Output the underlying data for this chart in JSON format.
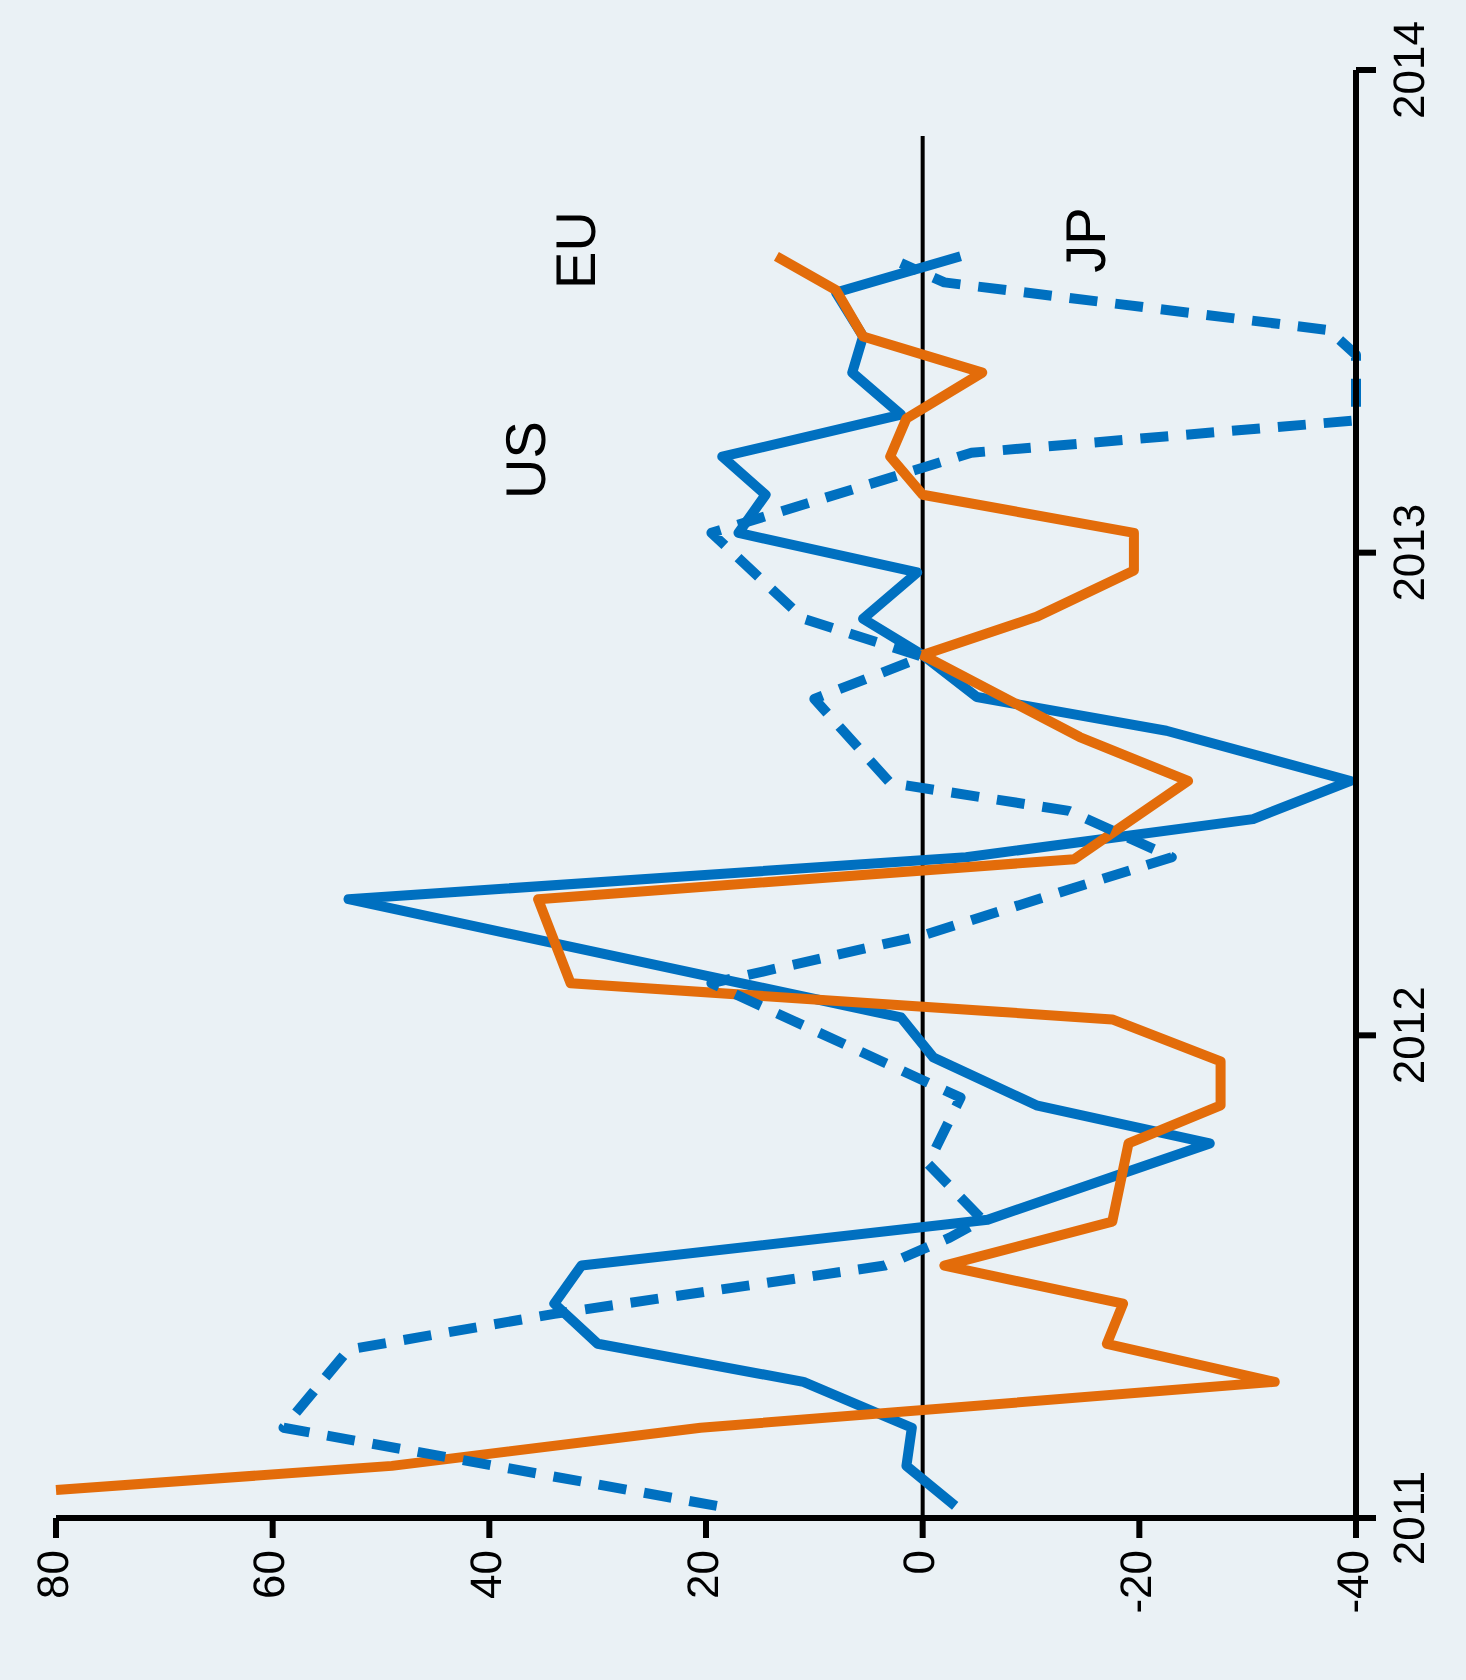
{
  "chart_data": {
    "type": "line",
    "xlim": [
      80,
      -40
    ],
    "xticks": [
      80,
      60,
      40,
      20,
      0,
      -20,
      -40
    ],
    "ylim": [
      2011,
      2014
    ],
    "yticks": [
      2011,
      2012,
      2013,
      2014
    ],
    "grid": false,
    "ref_lines": [
      {
        "axis": "x",
        "value": 0,
        "color": "#000000"
      }
    ],
    "annotations": [
      "US",
      "EU",
      "JP"
    ],
    "series": [
      {
        "color": "#0070c0",
        "line_style": "solid",
        "values": [
          2011.025,
          2011.108,
          2011.187,
          2011.282,
          2011.361,
          2011.444,
          2011.523,
          2011.618,
          2011.776,
          2011.855,
          2011.954,
          2012.037,
          2012.282,
          2012.369,
          2012.448,
          2012.527,
          2012.631,
          2012.701,
          2012.788,
          2012.863,
          2012.959,
          2013.041,
          2013.12,
          2013.199,
          2013.286,
          2013.373,
          2013.448,
          2013.539,
          2013.614
        ],
        "x": [
          -3,
          1.5,
          1,
          11,
          30,
          34,
          31.5,
          -6,
          -26.5,
          -10.5,
          -1,
          2,
          53,
          -4,
          -30.5,
          -39.5,
          -22.5,
          -5,
          0,
          5.5,
          0.5,
          17,
          14.5,
          18.5,
          2,
          6.5,
          5.5,
          8,
          -3.5
        ]
      },
      {
        "color": "#e36c0a",
        "line_style": "solid",
        "values": [
          2011.058,
          2011.108,
          2011.187,
          2011.282,
          2011.361,
          2011.444,
          2011.523,
          2011.614,
          2011.776,
          2011.855,
          2011.946,
          2012.033,
          2012.108,
          2012.282,
          2012.365,
          2012.527,
          2012.618,
          2012.788,
          2012.867,
          2012.963,
          2013.041,
          2013.12,
          2013.199,
          2013.278,
          2013.373,
          2013.448,
          2013.544,
          2013.614
        ],
        "x": [
          80,
          49,
          20.5,
          -32.5,
          -17,
          -18.5,
          -2,
          -17.5,
          -19,
          -27.5,
          -27.5,
          -17.5,
          32.5,
          35.5,
          -14,
          -24.5,
          -14.5,
          0,
          -10.5,
          -19.5,
          -19.5,
          0,
          3,
          1.5,
          -5.5,
          5.5,
          8,
          13.5
        ]
      },
      {
        "color": "#0070c0",
        "line_style": "dashed",
        "values": [
          2011.025,
          2011.187,
          2011.349,
          2011.423,
          2011.523,
          2011.581,
          2011.618,
          2011.734,
          2011.871,
          2012.108,
          2012.207,
          2012.369,
          2012.465,
          2012.523,
          2012.697,
          2012.784,
          2012.863,
          2013.041,
          2013.207,
          2013.274,
          2013.41,
          2013.461,
          2013.56,
          2013.6
        ],
        "x": [
          19,
          59,
          53,
          34,
          3.5,
          -2.5,
          -5.5,
          -0.5,
          -3.5,
          19.5,
          0,
          -23,
          -13.5,
          3,
          10,
          0,
          11,
          19.5,
          -4.5,
          -40,
          -40,
          -37.5,
          -2,
          2
        ]
      }
    ]
  }
}
